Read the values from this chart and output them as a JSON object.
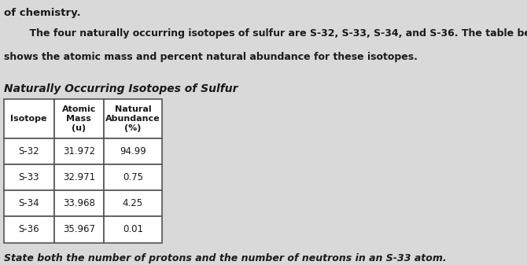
{
  "intro_text_line1": "    The four naturally occurring isotopes of sulfur are S-32, S-33, S-34, and S-36. The table below",
  "intro_text_line2": "shows the atomic mass and percent natural abundance for these isotopes.",
  "top_text": "of chemistry.",
  "table_title": "Naturally Occurring Isotopes of Sulfur",
  "col_headers": [
    [
      "Isotope",
      ""
    ],
    [
      "Atomic\nMass\n(u)",
      ""
    ],
    [
      "Natural\nAbundance\n(%)",
      ""
    ]
  ],
  "col_header_texts": [
    "Isotope",
    "Atomic\nMass\n(u)",
    "Natural\nAbundance\n(%)"
  ],
  "rows": [
    [
      "S-32",
      "31.972",
      "94.99"
    ],
    [
      "S-33",
      "32.971",
      "0.75"
    ],
    [
      "S-34",
      "33.968",
      "4.25"
    ],
    [
      "S-36",
      "35.967",
      "0.01"
    ]
  ],
  "bottom_text": "State both the number of protons and the number of neutrons in an S-33 atom.",
  "bg_color": "#d9d9d9",
  "table_bg": "#ffffff",
  "text_color": "#1a1a1a",
  "border_color": "#555555"
}
